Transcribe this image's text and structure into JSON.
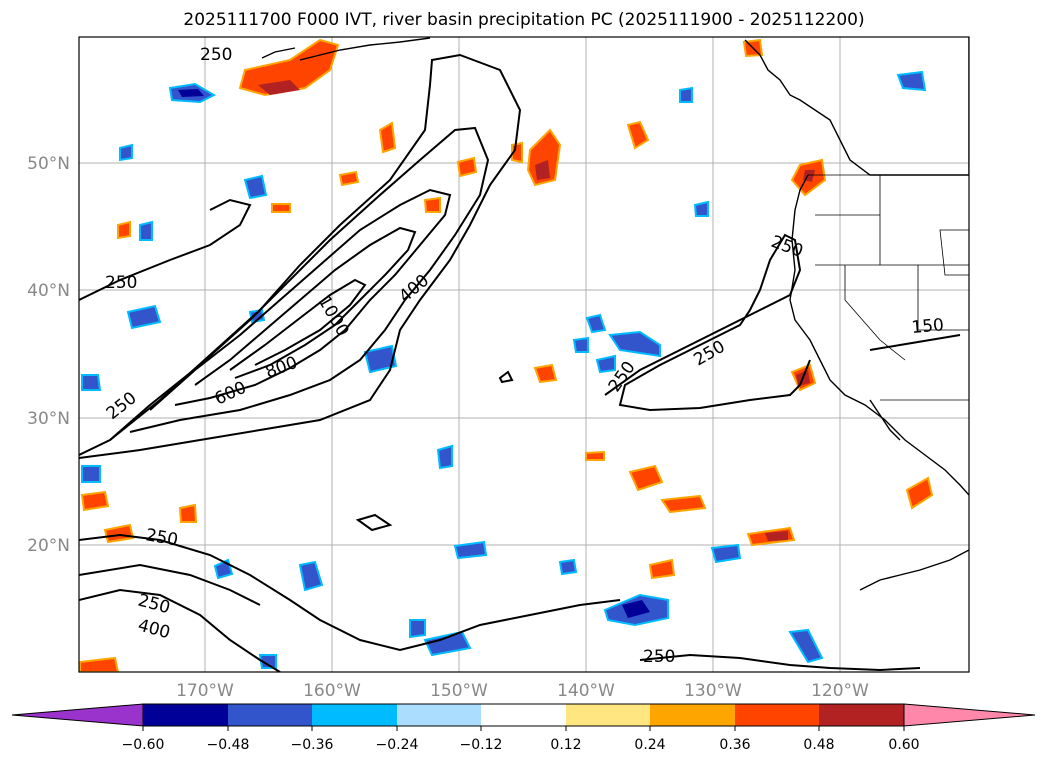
{
  "title": "2025111700 F000 IVT, river basin precipitation PC (2025111900 - 2025112200)",
  "lon_labels": [
    "170°W",
    "160°W",
    "150°W",
    "140°W",
    "130°W",
    "120°W"
  ],
  "lat_labels": [
    "50°N",
    "40°N",
    "30°N",
    "20°N"
  ],
  "contour_labels": {
    "c250": "250",
    "c400": "400",
    "c600": "600",
    "c800": "800",
    "c1000": "1000",
    "c150": "150"
  },
  "colorbar": {
    "ticks": [
      "−0.60",
      "−0.48",
      "−0.36",
      "−0.24",
      "−0.12",
      "0.12",
      "0.24",
      "0.36",
      "0.48",
      "0.60"
    ],
    "colors": {
      "under": "#9933cc",
      "c1": "#000099",
      "c2": "#3355cc",
      "c3": "#00bbff",
      "c4": "#aaddff",
      "c5": "#ffffff",
      "c6": "#ffe680",
      "c7": "#ffa500",
      "c8": "#ff4400",
      "c9": "#b22222",
      "over": "#ff88aa"
    }
  },
  "chart_data": {
    "type": "map-contour",
    "title": "2025111700 F000 IVT, river basin precipitation PC (2025111900 - 2025112200)",
    "lon_range": [
      -180,
      -110
    ],
    "lat_range": [
      10,
      60
    ],
    "ivt_contour_levels": [
      150,
      250,
      400,
      600,
      800,
      1000
    ],
    "colorbar_levels": [
      -0.6,
      -0.48,
      -0.36,
      -0.24,
      -0.12,
      0.12,
      0.24,
      0.36,
      0.48,
      0.6
    ],
    "colorbar_extend": "both"
  }
}
